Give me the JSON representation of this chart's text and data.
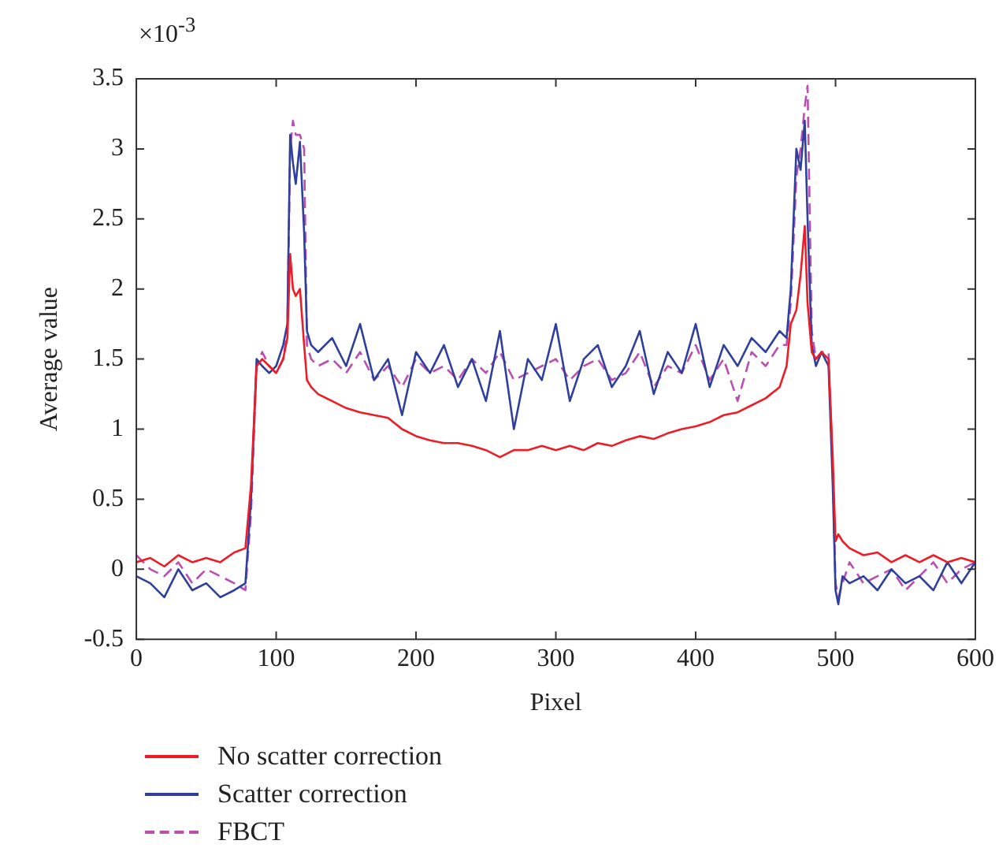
{
  "chart_data": {
    "type": "line",
    "xlabel": "Pixel",
    "ylabel": "Average value",
    "annotations": [
      "×10$^{-3}$"
    ],
    "x": [
      0,
      10,
      20,
      30,
      40,
      50,
      60,
      70,
      78,
      82,
      86,
      90,
      95,
      100,
      105,
      108,
      110,
      112,
      114,
      117,
      120,
      122,
      125,
      130,
      140,
      150,
      160,
      170,
      180,
      190,
      200,
      210,
      220,
      230,
      240,
      250,
      260,
      270,
      280,
      290,
      300,
      310,
      320,
      330,
      340,
      350,
      360,
      370,
      380,
      390,
      400,
      410,
      420,
      430,
      440,
      450,
      460,
      465,
      468,
      472,
      475,
      478,
      480,
      483,
      486,
      490,
      495,
      498,
      500,
      502,
      505,
      510,
      520,
      530,
      540,
      550,
      560,
      570,
      580,
      590,
      600
    ],
    "xlim": [
      0,
      600
    ],
    "xticks": [
      0,
      100,
      200,
      300,
      400,
      500,
      600
    ],
    "ylim": [
      -0.5,
      3.5
    ],
    "yticks": [
      -0.5,
      0,
      0.5,
      1,
      1.5,
      2,
      2.5,
      3,
      3.5
    ],
    "grid": false,
    "legend": "bottom",
    "marker": "none",
    "series": [
      {
        "name": "No scatter correction",
        "color": "#ee1c25",
        "line_style": "solid",
        "values": [
          0.05,
          0.08,
          0.02,
          0.1,
          0.05,
          0.08,
          0.05,
          0.12,
          0.15,
          0.6,
          1.45,
          1.5,
          1.45,
          1.4,
          1.5,
          1.65,
          2.25,
          2.0,
          1.95,
          2.0,
          1.6,
          1.35,
          1.3,
          1.25,
          1.2,
          1.15,
          1.12,
          1.1,
          1.08,
          1.0,
          0.95,
          0.92,
          0.9,
          0.9,
          0.88,
          0.85,
          0.8,
          0.85,
          0.85,
          0.88,
          0.85,
          0.88,
          0.85,
          0.9,
          0.88,
          0.92,
          0.95,
          0.93,
          0.97,
          1.0,
          1.02,
          1.05,
          1.1,
          1.12,
          1.17,
          1.22,
          1.3,
          1.45,
          1.75,
          1.85,
          2.1,
          2.45,
          1.9,
          1.55,
          1.5,
          1.55,
          1.5,
          0.8,
          0.2,
          0.25,
          0.2,
          0.15,
          0.1,
          0.12,
          0.05,
          0.1,
          0.05,
          0.1,
          0.05,
          0.08,
          0.05
        ]
      },
      {
        "name": "Scatter correction",
        "color": "#2e3f9e",
        "line_style": "solid",
        "values": [
          -0.05,
          -0.1,
          -0.2,
          0.0,
          -0.15,
          -0.1,
          -0.2,
          -0.15,
          -0.1,
          0.5,
          1.5,
          1.45,
          1.4,
          1.45,
          1.6,
          1.75,
          3.1,
          2.9,
          2.75,
          3.05,
          2.4,
          1.7,
          1.6,
          1.55,
          1.65,
          1.45,
          1.75,
          1.35,
          1.5,
          1.1,
          1.55,
          1.4,
          1.6,
          1.3,
          1.5,
          1.2,
          1.7,
          1.0,
          1.5,
          1.35,
          1.75,
          1.2,
          1.5,
          1.6,
          1.3,
          1.45,
          1.7,
          1.25,
          1.55,
          1.4,
          1.75,
          1.3,
          1.6,
          1.45,
          1.65,
          1.55,
          1.7,
          1.65,
          2.0,
          3.0,
          2.85,
          3.2,
          2.5,
          1.6,
          1.45,
          1.55,
          1.45,
          0.6,
          -0.15,
          -0.25,
          -0.05,
          -0.1,
          -0.05,
          -0.15,
          0.0,
          -0.1,
          -0.05,
          -0.15,
          0.05,
          -0.1,
          0.05
        ]
      },
      {
        "name": "FBCT",
        "color": "#b94fb0",
        "line_style": "dashed",
        "values": [
          0.1,
          0.0,
          -0.05,
          0.05,
          -0.1,
          0.0,
          -0.05,
          -0.1,
          -0.15,
          0.4,
          1.45,
          1.55,
          1.45,
          1.4,
          1.5,
          1.7,
          3.0,
          3.2,
          3.1,
          3.1,
          3.0,
          1.6,
          1.5,
          1.45,
          1.5,
          1.4,
          1.55,
          1.35,
          1.45,
          1.3,
          1.5,
          1.4,
          1.45,
          1.35,
          1.5,
          1.4,
          1.55,
          1.35,
          1.4,
          1.45,
          1.5,
          1.35,
          1.45,
          1.5,
          1.35,
          1.4,
          1.55,
          1.3,
          1.45,
          1.4,
          1.6,
          1.35,
          1.5,
          1.2,
          1.55,
          1.45,
          1.6,
          1.6,
          1.9,
          2.8,
          3.0,
          3.3,
          3.45,
          1.7,
          1.5,
          1.55,
          1.55,
          0.7,
          -0.1,
          -0.2,
          -0.1,
          0.05,
          -0.1,
          -0.05,
          0.0,
          -0.15,
          -0.05,
          0.05,
          -0.1,
          0.0,
          0.05
        ]
      }
    ]
  }
}
